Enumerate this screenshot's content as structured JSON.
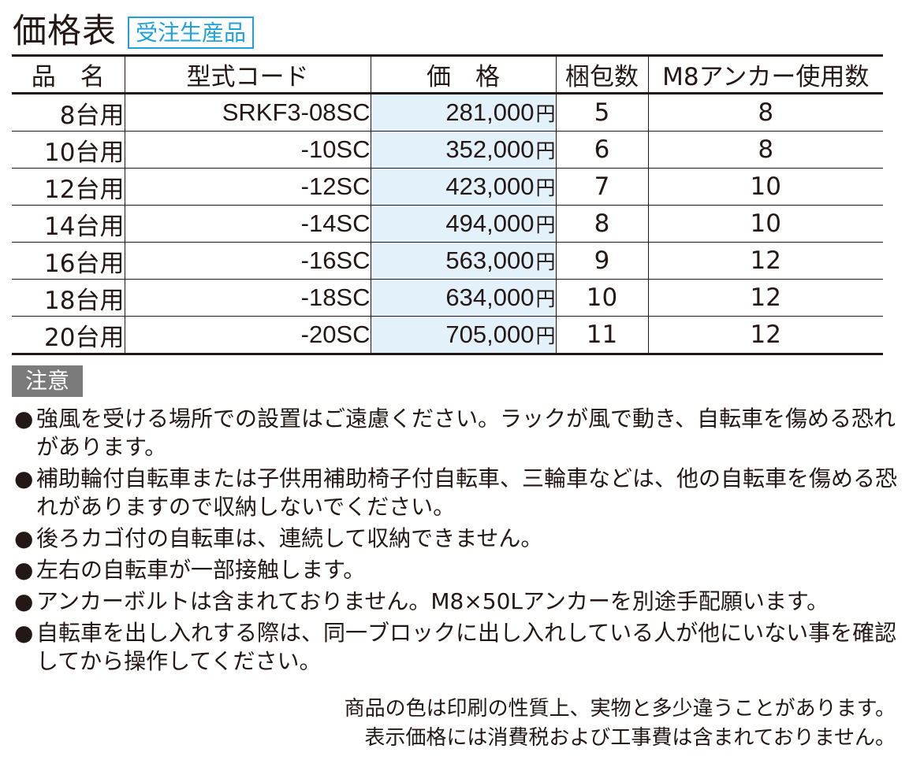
{
  "title": "価格表",
  "badge": "受注生産品",
  "table": {
    "headers": [
      "品　名",
      "型式コード",
      "価　格",
      "梱包数",
      "M8アンカー使用数"
    ],
    "rows": [
      {
        "name": "8台用",
        "model": "SRKF3-08SC",
        "price": "281,000",
        "unit": "円",
        "packages": "5",
        "anchors": "8"
      },
      {
        "name": "10台用",
        "model": "-10SC",
        "price": "352,000",
        "unit": "円",
        "packages": "6",
        "anchors": "8"
      },
      {
        "name": "12台用",
        "model": "-12SC",
        "price": "423,000",
        "unit": "円",
        "packages": "7",
        "anchors": "10"
      },
      {
        "name": "14台用",
        "model": "-14SC",
        "price": "494,000",
        "unit": "円",
        "packages": "8",
        "anchors": "10"
      },
      {
        "name": "16台用",
        "model": "-16SC",
        "price": "563,000",
        "unit": "円",
        "packages": "9",
        "anchors": "12"
      },
      {
        "name": "18台用",
        "model": "-18SC",
        "price": "634,000",
        "unit": "円",
        "packages": "10",
        "anchors": "12"
      },
      {
        "name": "20台用",
        "model": "-20SC",
        "price": "705,000",
        "unit": "円",
        "packages": "11",
        "anchors": "12"
      }
    ]
  },
  "notice": {
    "label": "注意",
    "items": [
      "強風を受ける場所での設置はご遠慮ください。ラックが風で動き、自転車を傷める恐れがあります。",
      "補助輪付自転車または子供用補助椅子付自転車、三輪車などは、他の自転車を傷める恐れがありますので収納しないでください。",
      "後ろカゴ付の自転車は、連続して収納できません。",
      "左右の自転車が一部接触します。",
      "アンカーボルトは含まれておりません。M8×50Lアンカーを別途手配願います。",
      "自転車を出し入れする際は、同一ブロックに出し入れしている人が他にいない事を確認してから操作してください。"
    ]
  },
  "footer": [
    "商品の色は印刷の性質上、実物と多少違うことがあります。",
    "表示価格には消費税および工事費は含まれておりません。"
  ],
  "colors": {
    "accent": "#1ea1dc",
    "price_bg": "#e3f1fb",
    "notice_bg": "#7b7b7b"
  }
}
